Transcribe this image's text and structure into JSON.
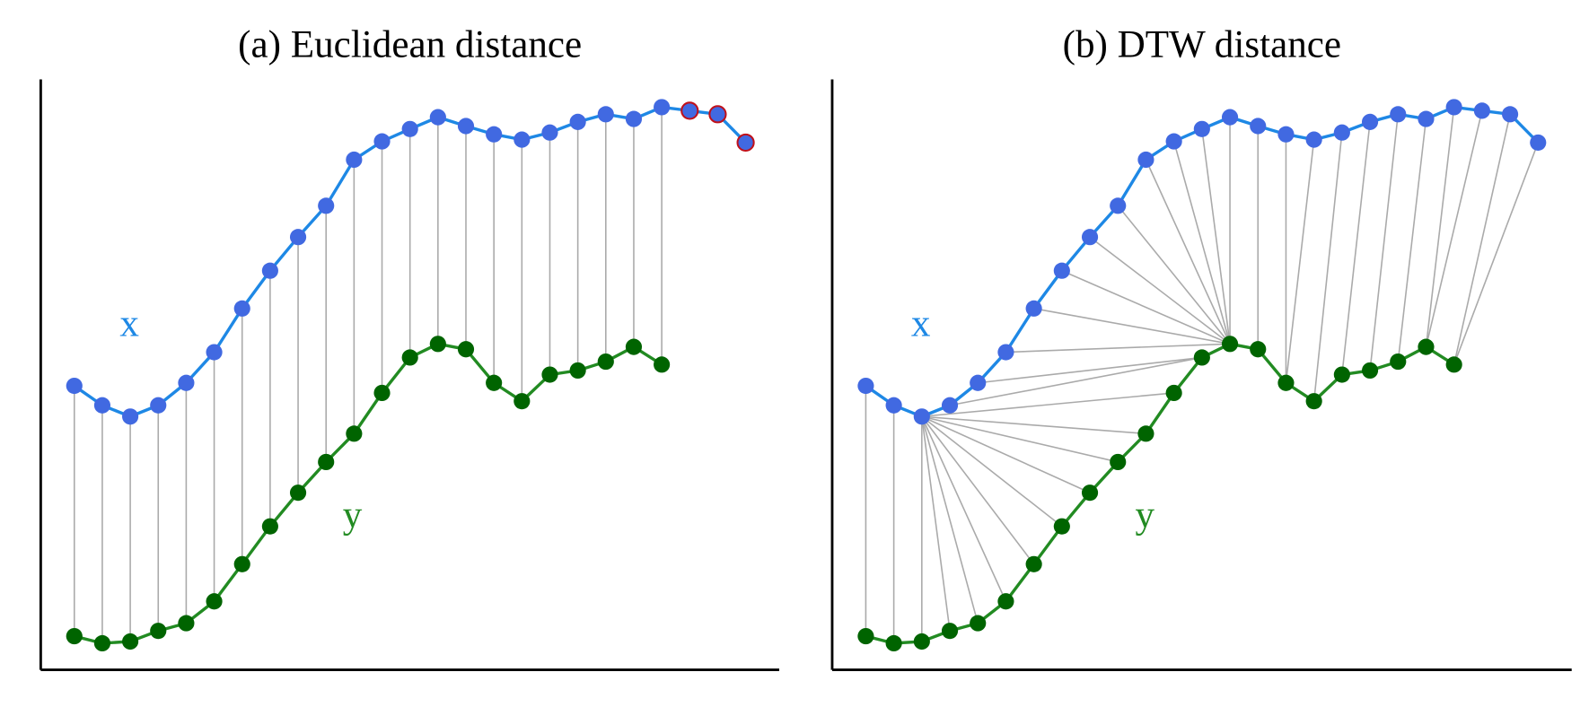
{
  "chart_data": [
    {
      "type": "line",
      "title": "(a) Euclidean distance",
      "xlim": [
        -1.2,
        25.2
      ],
      "ylim": [
        0,
        100
      ],
      "series": [
        {
          "name": "x",
          "color": "#1e88e5",
          "marker_color": "#4169e1",
          "x": [
            0,
            1,
            2,
            3,
            4,
            5,
            6,
            7,
            8,
            9,
            10,
            11,
            12,
            13,
            14,
            15,
            16,
            17,
            18,
            19,
            20,
            21,
            22,
            23,
            24
          ],
          "values": [
            48.1,
            44.8,
            42.9,
            44.8,
            48.6,
            53.8,
            61.2,
            67.6,
            73.3,
            78.6,
            86.4,
            89.5,
            91.6,
            93.6,
            92.1,
            90.7,
            89.8,
            91.0,
            92.8,
            94.1,
            93.3,
            95.3,
            94.7,
            94.1,
            89.3
          ]
        },
        {
          "name": "y",
          "color": "#228b22",
          "marker_color": "#006400",
          "x": [
            0,
            1,
            2,
            3,
            4,
            5,
            6,
            7,
            8,
            9,
            10,
            11,
            12,
            13,
            14,
            15,
            16,
            17,
            18,
            19,
            20,
            21
          ],
          "values": [
            5.7,
            4.5,
            4.8,
            6.6,
            7.9,
            11.6,
            17.9,
            24.3,
            30.0,
            35.2,
            40.0,
            46.9,
            52.9,
            55.2,
            54.3,
            48.6,
            45.5,
            50.0,
            50.7,
            52.2,
            54.7,
            51.7
          ]
        }
      ],
      "links": [
        [
          0,
          0
        ],
        [
          1,
          1
        ],
        [
          2,
          2
        ],
        [
          3,
          3
        ],
        [
          4,
          4
        ],
        [
          5,
          5
        ],
        [
          6,
          6
        ],
        [
          7,
          7
        ],
        [
          8,
          8
        ],
        [
          9,
          9
        ],
        [
          10,
          10
        ],
        [
          11,
          11
        ],
        [
          12,
          12
        ],
        [
          13,
          13
        ],
        [
          14,
          14
        ],
        [
          15,
          15
        ],
        [
          16,
          16
        ],
        [
          17,
          17
        ],
        [
          18,
          18
        ],
        [
          19,
          19
        ],
        [
          20,
          20
        ],
        [
          21,
          21
        ]
      ],
      "highlight": [
        22,
        23,
        24
      ],
      "highlight_color": "#c0101a"
    },
    {
      "type": "line",
      "title": "(b) DTW distance",
      "xlim": [
        -1.2,
        25.2
      ],
      "ylim": [
        0,
        100
      ],
      "series": [
        {
          "name": "x",
          "color": "#1e88e5",
          "marker_color": "#4169e1",
          "x": [
            0,
            1,
            2,
            3,
            4,
            5,
            6,
            7,
            8,
            9,
            10,
            11,
            12,
            13,
            14,
            15,
            16,
            17,
            18,
            19,
            20,
            21,
            22,
            23,
            24
          ],
          "values": [
            48.1,
            44.8,
            42.9,
            44.8,
            48.6,
            53.8,
            61.2,
            67.6,
            73.3,
            78.6,
            86.4,
            89.5,
            91.6,
            93.6,
            92.1,
            90.7,
            89.8,
            91.0,
            92.8,
            94.1,
            93.3,
            95.3,
            94.7,
            94.1,
            89.3
          ]
        },
        {
          "name": "y",
          "color": "#228b22",
          "marker_color": "#006400",
          "x": [
            0,
            1,
            2,
            3,
            4,
            5,
            6,
            7,
            8,
            9,
            10,
            11,
            12,
            13,
            14,
            15,
            16,
            17,
            18,
            19,
            20,
            21
          ],
          "values": [
            5.7,
            4.5,
            4.8,
            6.6,
            7.9,
            11.6,
            17.9,
            24.3,
            30.0,
            35.2,
            40.0,
            46.9,
            52.9,
            55.2,
            54.3,
            48.6,
            45.5,
            50.0,
            50.7,
            52.2,
            54.7,
            51.7
          ]
        }
      ],
      "links": [
        [
          0,
          0
        ],
        [
          1,
          1
        ],
        [
          2,
          2
        ],
        [
          2,
          3
        ],
        [
          2,
          4
        ],
        [
          2,
          5
        ],
        [
          2,
          6
        ],
        [
          2,
          7
        ],
        [
          2,
          8
        ],
        [
          2,
          9
        ],
        [
          2,
          10
        ],
        [
          2,
          11
        ],
        [
          3,
          12
        ],
        [
          4,
          12
        ],
        [
          5,
          13
        ],
        [
          6,
          13
        ],
        [
          7,
          13
        ],
        [
          8,
          13
        ],
        [
          9,
          13
        ],
        [
          10,
          13
        ],
        [
          11,
          13
        ],
        [
          12,
          13
        ],
        [
          13,
          13
        ],
        [
          14,
          14
        ],
        [
          15,
          15
        ],
        [
          16,
          15
        ],
        [
          17,
          16
        ],
        [
          18,
          17
        ],
        [
          19,
          18
        ],
        [
          20,
          19
        ],
        [
          21,
          20
        ],
        [
          22,
          20
        ],
        [
          23,
          21
        ],
        [
          24,
          21
        ]
      ]
    }
  ]
}
